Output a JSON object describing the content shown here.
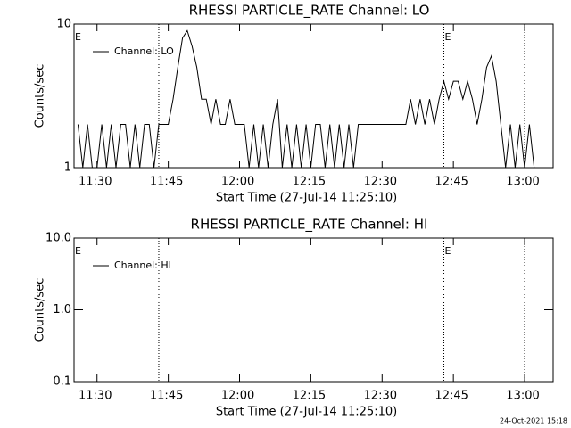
{
  "chart_data": [
    {
      "type": "line",
      "title": "RHESSI PARTICLE_RATE Channel: LO",
      "xlabel": "Start Time (27-Jul-14 11:25:10)",
      "ylabel": "Counts/sec",
      "log_y": true,
      "legend": "top-left",
      "xlim": [
        "11:25:10",
        "13:06"
      ],
      "xticks": [
        "11:30",
        "11:45",
        "12:00",
        "12:15",
        "12:30",
        "12:45",
        "13:00"
      ],
      "ylim": [
        1,
        10
      ],
      "yticks": [
        1,
        10
      ],
      "vlines": [
        "11:43",
        "12:43",
        "13:00"
      ],
      "annotations": [
        {
          "x": "11:25:10",
          "text": "E"
        },
        {
          "x": "12:43",
          "text": "E"
        }
      ],
      "x": [
        "11:26",
        "11:27",
        "11:28",
        "11:29",
        "11:30",
        "11:31",
        "11:32",
        "11:33",
        "11:34",
        "11:35",
        "11:36",
        "11:37",
        "11:38",
        "11:39",
        "11:40",
        "11:41",
        "11:42",
        "11:43",
        "11:44",
        "11:45",
        "11:46",
        "11:47",
        "11:48",
        "11:49",
        "11:50",
        "11:51",
        "11:52",
        "11:53",
        "11:54",
        "11:55",
        "11:56",
        "11:57",
        "11:58",
        "11:59",
        "12:00",
        "12:01",
        "12:02",
        "12:03",
        "12:04",
        "12:05",
        "12:06",
        "12:07",
        "12:08",
        "12:09",
        "12:10",
        "12:11",
        "12:12",
        "12:13",
        "12:14",
        "12:15",
        "12:16",
        "12:17",
        "12:18",
        "12:19",
        "12:20",
        "12:21",
        "12:22",
        "12:23",
        "12:24",
        "12:25",
        "12:26",
        "12:27",
        "12:28",
        "12:29",
        "12:30",
        "12:31",
        "12:32",
        "12:33",
        "12:34",
        "12:35",
        "12:36",
        "12:37",
        "12:38",
        "12:39",
        "12:40",
        "12:41",
        "12:42",
        "12:43",
        "12:44",
        "12:45",
        "12:46",
        "12:47",
        "12:48",
        "12:49",
        "12:50",
        "12:51",
        "12:52",
        "12:53",
        "12:54",
        "12:55",
        "12:56",
        "12:57",
        "12:58",
        "12:59",
        "13:00",
        "13:01",
        "13:02"
      ],
      "series": [
        {
          "name": "Channel: LO",
          "color": "#000000",
          "values": [
            2,
            1,
            2,
            1,
            1,
            2,
            1,
            2,
            1,
            2,
            2,
            1,
            2,
            1,
            2,
            2,
            1,
            2,
            2,
            2,
            3,
            5,
            8,
            9,
            7,
            5,
            3,
            3,
            2,
            3,
            2,
            2,
            3,
            2,
            2,
            2,
            1,
            2,
            1,
            2,
            1,
            2,
            3,
            1,
            2,
            1,
            2,
            1,
            2,
            1,
            2,
            2,
            1,
            2,
            1,
            2,
            1,
            2,
            1,
            2,
            2,
            2,
            2,
            2,
            2,
            2,
            2,
            2,
            2,
            2,
            3,
            2,
            3,
            2,
            3,
            2,
            3,
            4,
            3,
            4,
            4,
            3,
            4,
            3,
            2,
            3,
            5,
            6,
            4,
            2,
            1,
            2,
            1,
            2,
            1,
            2,
            1
          ]
        }
      ]
    },
    {
      "type": "line",
      "title": "RHESSI PARTICLE_RATE Channel: HI",
      "xlabel": "Start Time (27-Jul-14 11:25:10)",
      "ylabel": "Counts/sec",
      "log_y": true,
      "legend": "top-left",
      "xlim": [
        "11:25:10",
        "13:06"
      ],
      "xticks": [
        "11:30",
        "11:45",
        "12:00",
        "12:15",
        "12:30",
        "12:45",
        "13:00"
      ],
      "ylim": [
        0.1,
        10
      ],
      "yticks": [
        {
          "value": 0.1,
          "label": "0.1"
        },
        {
          "value": 1,
          "label": "1.0"
        },
        {
          "value": 10,
          "label": "10.0"
        }
      ],
      "vlines": [
        "11:43",
        "12:43",
        "13:00"
      ],
      "annotations": [
        {
          "x": "11:25:10",
          "text": "E"
        },
        {
          "x": "12:43",
          "text": "E"
        }
      ],
      "x": [],
      "series": [
        {
          "name": "Channel: HI",
          "color": "#000000",
          "values": []
        }
      ]
    }
  ],
  "footer": "24-Oct-2021 15:18"
}
